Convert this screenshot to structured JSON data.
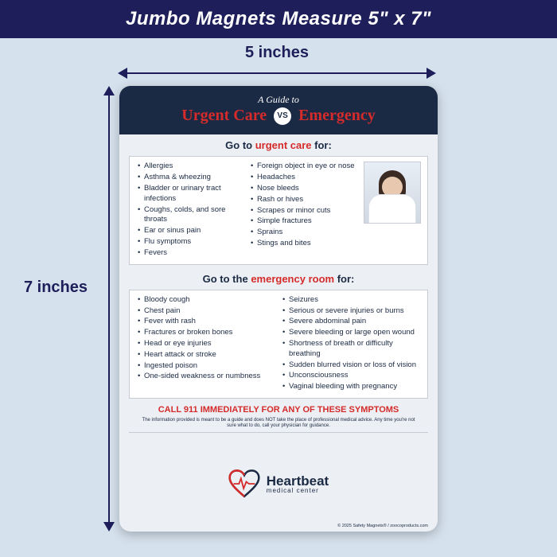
{
  "colors": {
    "page_bg": "#d5e1ed",
    "deep_navy": "#1e1f5a",
    "header_navy": "#1b2a44",
    "accent_red": "#d52b2b",
    "card_bg": "#eceff3",
    "box_bg": "#ffffff",
    "box_border": "#c7ccd4"
  },
  "header": {
    "text": "Jumbo Magnets Measure 5\" x 7\""
  },
  "dims": {
    "width_label": "5 inches",
    "height_label": "7 inches"
  },
  "magnet": {
    "guide_prefix": "A Guide to",
    "title_uc": "Urgent Care",
    "title_vs": "VS",
    "title_em": "Emergency",
    "urgent": {
      "prefix": "Go to ",
      "highlight": "urgent care",
      "suffix": " for:",
      "col1": [
        "Allergies",
        "Asthma & wheezing",
        "Bladder or urinary tract infections",
        "Coughs, colds, and sore throats",
        "Ear or sinus pain",
        "Flu symptoms",
        "Fevers"
      ],
      "col2": [
        "Foreign object in eye or nose",
        "Headaches",
        "Nose bleeds",
        "Rash or hives",
        "Scrapes or minor cuts",
        "Simple fractures",
        "Sprains",
        "Stings and bites"
      ]
    },
    "emergency": {
      "prefix": "Go to the ",
      "highlight": "emergency room",
      "suffix": " for:",
      "col1": [
        "Bloody cough",
        "Chest pain",
        "Fever with rash",
        "Fractures or broken bones",
        "Head or eye injuries",
        "Heart attack or stroke",
        "Ingested poison",
        "One-sided weakness or numbness"
      ],
      "col2": [
        "Seizures",
        "Serious or severe injuries or burns",
        "Severe abdominal pain",
        "Severe bleeding or large open wound",
        "Shortness of breath or difficulty breathing",
        "Sudden blurred vision or loss of vision",
        "Unconsciousness",
        "Vaginal bleeding with pregnancy"
      ]
    },
    "call911": "CALL 911 IMMEDIATELY FOR ANY OF THESE SYMPTOMS",
    "disclaimer": "The information provided is meant to be a guide and does NOT take the place of professional medical advice. Any time you're not sure what to do, call your physician for guidance.",
    "brand": {
      "name": "Heartbeat",
      "sub": "medical center"
    },
    "copyright": "© 2025 Safety Magnets® / zoocoproducts.com"
  }
}
